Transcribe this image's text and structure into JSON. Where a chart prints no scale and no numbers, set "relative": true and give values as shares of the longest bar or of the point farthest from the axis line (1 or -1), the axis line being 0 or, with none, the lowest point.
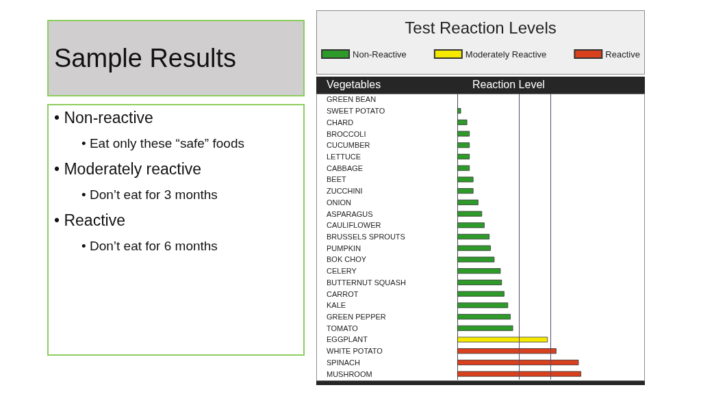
{
  "chart_data": [
    {
      "type": "other",
      "title": "Sample Results",
      "annotations": [
        "• Non-reactive",
        "• Eat only these “safe” foods",
        "• Moderately reactive",
        "• Don’t eat for 3 months",
        "• Reactive",
        "• Don’t eat for 6 months"
      ]
    },
    {
      "type": "bar",
      "orientation": "horizontal",
      "relative": true,
      "title": "Test Reaction Levels",
      "xlabel": "Reaction Level",
      "ylabel": "Vegetables",
      "legend": "top",
      "categories": [
        "GREEN BEAN",
        "SWEET POTATO",
        "CHARD",
        "BROCCOLI",
        "CUCUMBER",
        "LETTUCE",
        "CABBAGE",
        "BEET",
        "ZUCCHINI",
        "ONION",
        "ASPARAGUS",
        "CAULIFLOWER",
        "BRUSSELS SPROUTS",
        "PUMPKIN",
        "BOK CHOY",
        "CELERY",
        "BUTTERNUT SQUASH",
        "CARROT",
        "KALE",
        "GREEN PEPPER",
        "TOMATO",
        "EGGPLANT",
        "WHITE POTATO",
        "SPINACH",
        "MUSHROOM"
      ],
      "series": [
        {
          "name": "Non-Reactive",
          "color": "#2e9a2a",
          "values": [
            0,
            0.03,
            0.08,
            0.1,
            0.1,
            0.1,
            0.1,
            0.13,
            0.13,
            0.17,
            0.2,
            0.22,
            0.26,
            0.27,
            0.3,
            0.35,
            0.36,
            0.38,
            0.41,
            0.43,
            0.45,
            null,
            null,
            null,
            null
          ]
        },
        {
          "name": "Moderately Reactive",
          "color": "#f5e900",
          "values": [
            null,
            null,
            null,
            null,
            null,
            null,
            null,
            null,
            null,
            null,
            null,
            null,
            null,
            null,
            null,
            null,
            null,
            null,
            null,
            null,
            null,
            0.73,
            null,
            null,
            null
          ]
        },
        {
          "name": "Reactive",
          "color": "#d9401e",
          "values": [
            null,
            null,
            null,
            null,
            null,
            null,
            null,
            null,
            null,
            null,
            null,
            null,
            null,
            null,
            null,
            null,
            null,
            null,
            null,
            null,
            null,
            null,
            0.8,
            0.98,
            1
          ]
        }
      ],
      "ref_lines": [
        {
          "axis": "x",
          "value": 0.5,
          "color": "#5a4c66"
        },
        {
          "axis": "x",
          "value": 0.75,
          "color": "#5a4c66"
        }
      ]
    }
  ]
}
